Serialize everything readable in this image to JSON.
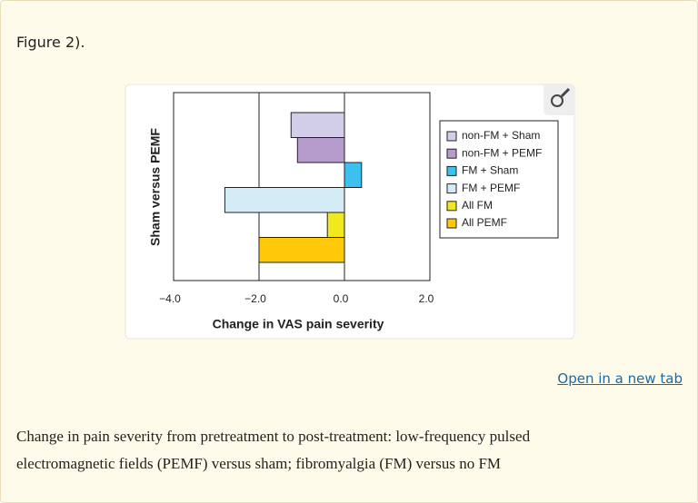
{
  "figure_ref": "Figure 2).",
  "chart_data": {
    "type": "hbar",
    "ylabel": "Sham versus PEMF",
    "xlabel": "Change in VAS pain severity",
    "categories": [
      "non-FM + Sham",
      "non-FM + PEMF",
      "FM + Sham",
      "FM + PEMF",
      "All FM",
      "All PEMF"
    ],
    "values": [
      -1.25,
      -1.1,
      0.4,
      -2.8,
      -0.4,
      -2.0
    ],
    "colors": [
      "#d2cde9",
      "#b59ccd",
      "#3cc0ee",
      "#d5ecf6",
      "#f2e81e",
      "#ffc90a"
    ],
    "xlim": [
      -4,
      2
    ],
    "xticks": [
      {
        "value": -4,
        "label": "−4.0"
      },
      {
        "value": -2,
        "label": "−2.0"
      },
      {
        "value": 0,
        "label": "0.0"
      },
      {
        "value": 2,
        "label": "2.0"
      }
    ],
    "grid": true,
    "legend": "right"
  },
  "link": "Open in a new tab",
  "caption": "Change in pain severity from pretreatment to post-treatment: low-frequency pulsed electromagnetic fields (PEMF) versus sham; fibromyalgia (FM) versus no FM"
}
